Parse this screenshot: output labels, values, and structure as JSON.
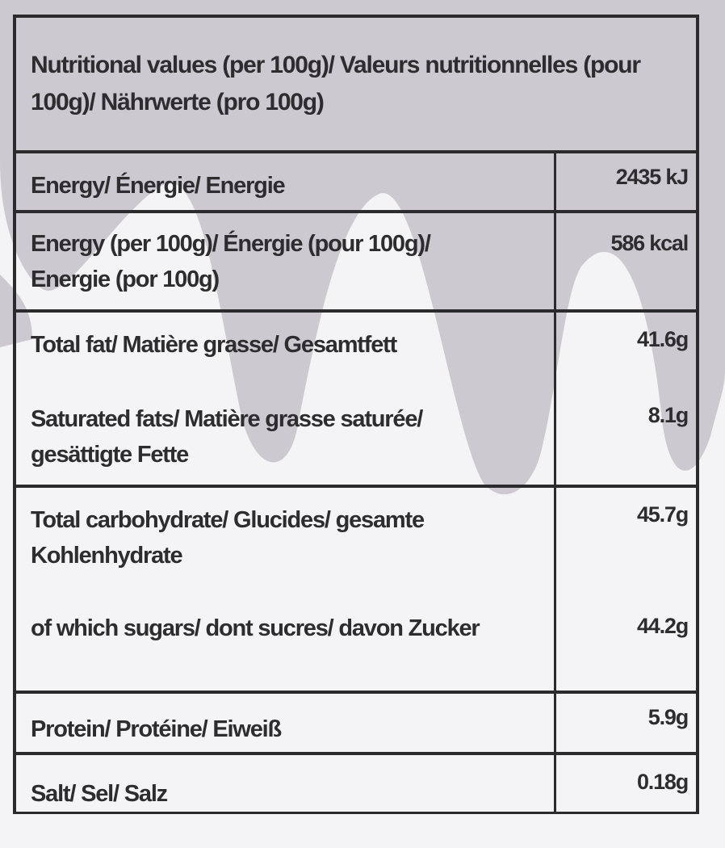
{
  "header": "Nutritional values (per 100g)/ Valeurs nutritionnelles (pour 100g)/ Nährwerte (pro 100g)",
  "rows": [
    {
      "label": "Energy/ Énergie/ Energie",
      "value": "2435 kJ"
    },
    {
      "label": "Energy (per 100g)/ Énergie (pour 100g)/ Energie (por 100g)",
      "value": "586 kcal"
    },
    {
      "label": "Total fat/ Matière grasse/ Gesamtfett",
      "value": "41.6g"
    },
    {
      "label": "Saturated fats/ Matière grasse saturée/ gesättigte Fette",
      "value": "8.1g"
    },
    {
      "label": "Total carbohydrate/ Glucides/ gesamte Kohlenhydrate",
      "value": "45.7g"
    },
    {
      "label": "of which sugars/ dont sucres/ davon Zucker",
      "value": "44.2g"
    },
    {
      "label": "Protein/ Protéine/ Eiweiß",
      "value": "5.9g"
    },
    {
      "label": "Salt/ Sel/ Salz",
      "value": "0.18g"
    }
  ],
  "colors": {
    "background": "#cdc9d0",
    "drip": "#f4f3f6",
    "text": "#2d2c2e"
  }
}
